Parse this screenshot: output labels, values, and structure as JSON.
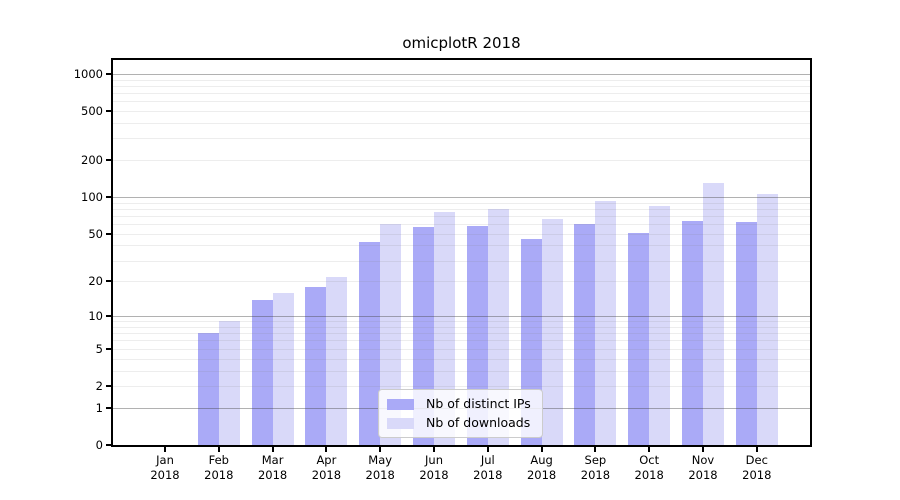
{
  "chart_data": {
    "type": "bar",
    "title": "omicplotR 2018",
    "categories": [
      "Jan",
      "Feb",
      "Mar",
      "Apr",
      "May",
      "Jun",
      "Jul",
      "Aug",
      "Sep",
      "Oct",
      "Nov",
      "Dec"
    ],
    "x_tick_year": "2018",
    "series": [
      {
        "name": "Nb of distinct IPs",
        "color": "#aaaaf7",
        "values": [
          0,
          7,
          14,
          18,
          43,
          57,
          58,
          45,
          60,
          51,
          64,
          62
        ]
      },
      {
        "name": "Nb of downloads",
        "color": "#d9d9f9",
        "values": [
          0,
          9,
          16,
          22,
          60,
          76,
          80,
          66,
          93,
          85,
          130,
          106
        ]
      }
    ],
    "y_ticks": [
      0,
      1,
      2,
      5,
      10,
      20,
      50,
      100,
      200,
      500,
      1000
    ],
    "y_scale": "log10(value+1)",
    "ylim": [
      0,
      1295
    ],
    "grid": true,
    "legend_position": "lower center"
  },
  "colors": {
    "background": "#ffffff",
    "axis": "#000000",
    "bar_distinct_ips": "#aaaaf7",
    "bar_downloads": "#d9d9f9",
    "major_gridline": "#b0b0b0",
    "minor_gridline": "#e9e9ee"
  }
}
